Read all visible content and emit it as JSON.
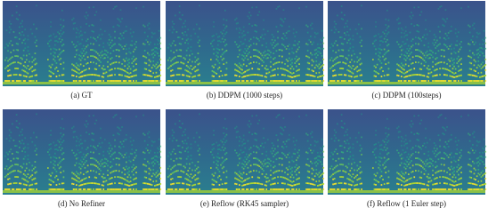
{
  "panels": [
    {
      "caption": "(a) GT"
    },
    {
      "caption": "(b) DDPM (1000 steps)"
    },
    {
      "caption": "(c) DDPM (100steps)"
    },
    {
      "caption": "(d) No Refiner"
    },
    {
      "caption": "(e) Reflow (RK45 sampler)"
    },
    {
      "caption": "(f) Reflow (1 Euler step)"
    }
  ]
}
